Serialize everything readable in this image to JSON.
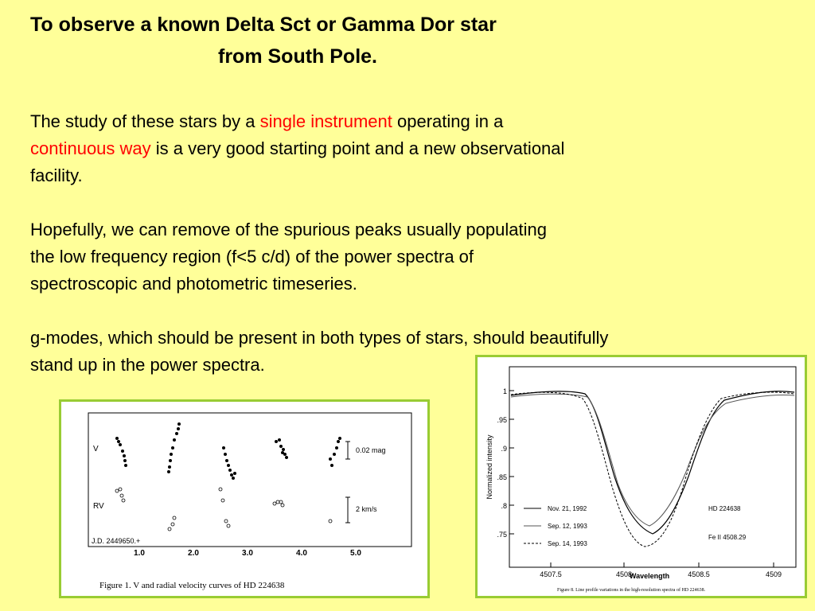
{
  "slide": {
    "title_line1": "To observe a  known Delta Sct or Gamma Dor star",
    "title_line2": "from South Pole.",
    "p1": {
      "a": "The study  of these stars  by a ",
      "b": "single instrument",
      "c": " operating in a",
      "d": "continuous way",
      "e": "  is a very good starting point  and  a new  observational",
      "f": "facility."
    },
    "p2": [
      "Hopefully, we can remove of  the spurious  peaks usually populating",
      "the  low frequency region (f<5 c/d) of  the power spectra of",
      "spectroscopic  and photometric timeseries."
    ],
    "p3": [
      "g-modes, which should be present in both types of stars, should beautifully",
      "stand up in the power spectra."
    ],
    "colors": {
      "background": "#ffff99",
      "highlight": "#ff0000",
      "frame": "#99cc33"
    }
  },
  "figure1": {
    "row_v": "V",
    "row_rv": "RV",
    "scale_v": "0.02 mag",
    "scale_rv": "2 km/s",
    "jd_label": "J.D. 2449650.+",
    "x_ticks": [
      "1.0",
      "2.0",
      "3.0",
      "4.0",
      "5.0"
    ],
    "caption": "Figure 1.     V and radial velocity curves of HD 224638"
  },
  "figure2": {
    "y_label": "Normalized intensity",
    "y_ticks": [
      "1",
      ".95",
      ".9",
      ".85",
      ".8",
      ".75"
    ],
    "x_ticks": [
      "4507.5",
      "4508",
      "4508.5",
      "4509"
    ],
    "x_label": "Wavelength",
    "legend": [
      "Nov. 21, 1992",
      "Sep. 12, 1993",
      "Sep. 14, 1993"
    ],
    "star": "HD 224638",
    "line_id": "Fe II 4508.29",
    "caption": "Figure 8. Line profile variations in the high-resolution spectra of HD 224638."
  }
}
